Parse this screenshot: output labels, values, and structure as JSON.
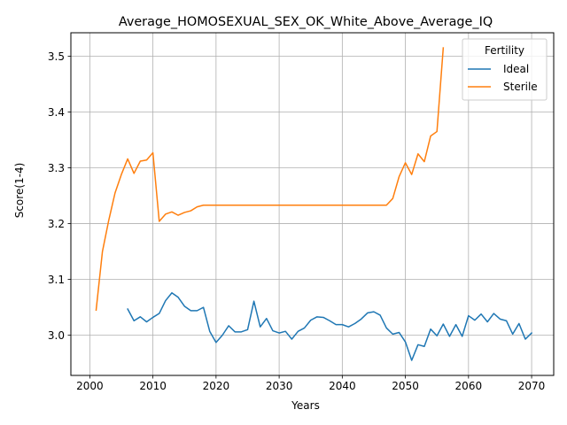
{
  "chart_data": {
    "type": "line",
    "title": "Average_HOMOSEXUAL_SEX_OK_White_Above_Average_IQ",
    "xlabel": "Years",
    "ylabel": "Score(1-4)",
    "xlim": [
      1997,
      2073.5
    ],
    "ylim": [
      2.928,
      3.542
    ],
    "xticks": [
      2000,
      2010,
      2020,
      2030,
      2040,
      2050,
      2060,
      2070
    ],
    "yticks": [
      3.0,
      3.1,
      3.2,
      3.3,
      3.4,
      3.5
    ],
    "xtick_labels": [
      "2000",
      "2010",
      "2020",
      "2030",
      "2040",
      "2050",
      "2060",
      "2070"
    ],
    "ytick_labels": [
      "3.0",
      "3.1",
      "3.2",
      "3.3",
      "3.4",
      "3.5"
    ],
    "grid": true,
    "legend": {
      "title": "Fertility",
      "placement": "top-right"
    },
    "series": [
      {
        "name": "Ideal",
        "color": "#1f77b4",
        "x": [
          2006,
          2007,
          2008,
          2009,
          2010,
          2011,
          2012,
          2013,
          2014,
          2015,
          2016,
          2017,
          2018,
          2019,
          2020,
          2021,
          2022,
          2023,
          2024,
          2025,
          2026,
          2027,
          2028,
          2029,
          2030,
          2031,
          2032,
          2033,
          2034,
          2035,
          2036,
          2037,
          2038,
          2039,
          2040,
          2041,
          2042,
          2043,
          2044,
          2045,
          2046,
          2047,
          2048,
          2049,
          2050,
          2051,
          2052,
          2053,
          2054,
          2055,
          2056,
          2057,
          2058,
          2059,
          2060,
          2061,
          2062,
          2063,
          2064,
          2065,
          2066,
          2067,
          2068,
          2069,
          2070
        ],
        "values": [
          3.047,
          3.026,
          3.033,
          3.024,
          3.032,
          3.039,
          3.062,
          3.076,
          3.068,
          3.052,
          3.044,
          3.044,
          3.05,
          3.007,
          2.987,
          3.0,
          3.017,
          3.006,
          3.006,
          3.01,
          3.061,
          3.015,
          3.03,
          3.008,
          3.004,
          3.007,
          2.993,
          3.007,
          3.013,
          3.027,
          3.033,
          3.032,
          3.026,
          3.019,
          3.019,
          3.015,
          3.021,
          3.029,
          3.04,
          3.042,
          3.036,
          3.013,
          3.002,
          3.005,
          2.988,
          2.955,
          2.983,
          2.98,
          3.011,
          2.999,
          3.02,
          2.998,
          3.019,
          2.998,
          3.035,
          3.027,
          3.038,
          3.024,
          3.039,
          3.029,
          3.026,
          3.002,
          3.021,
          2.993,
          3.004
        ]
      },
      {
        "name": "Sterile",
        "color": "#ff7f0e",
        "x": [
          2001,
          2002,
          2003,
          2004,
          2005,
          2006,
          2007,
          2008,
          2009,
          2010,
          2011,
          2012,
          2013,
          2014,
          2015,
          2016,
          2017,
          2018,
          2019,
          2020,
          2021,
          2022,
          2023,
          2024,
          2025,
          2026,
          2027,
          2028,
          2029,
          2030,
          2031,
          2032,
          2033,
          2034,
          2035,
          2036,
          2037,
          2038,
          2039,
          2040,
          2041,
          2042,
          2043,
          2044,
          2045,
          2046,
          2047,
          2048,
          2049,
          2050,
          2051,
          2052,
          2053,
          2054,
          2055,
          2056
        ],
        "values": [
          3.045,
          3.15,
          3.206,
          3.255,
          3.288,
          3.316,
          3.29,
          3.312,
          3.314,
          3.327,
          3.204,
          3.217,
          3.221,
          3.215,
          3.22,
          3.223,
          3.23,
          3.233,
          3.233,
          3.233,
          3.233,
          3.233,
          3.233,
          3.233,
          3.233,
          3.233,
          3.233,
          3.233,
          3.233,
          3.233,
          3.233,
          3.233,
          3.233,
          3.233,
          3.233,
          3.233,
          3.233,
          3.233,
          3.233,
          3.233,
          3.233,
          3.233,
          3.233,
          3.233,
          3.233,
          3.233,
          3.233,
          3.245,
          3.284,
          3.309,
          3.288,
          3.325,
          3.311,
          3.357,
          3.365,
          3.515
        ]
      }
    ]
  }
}
